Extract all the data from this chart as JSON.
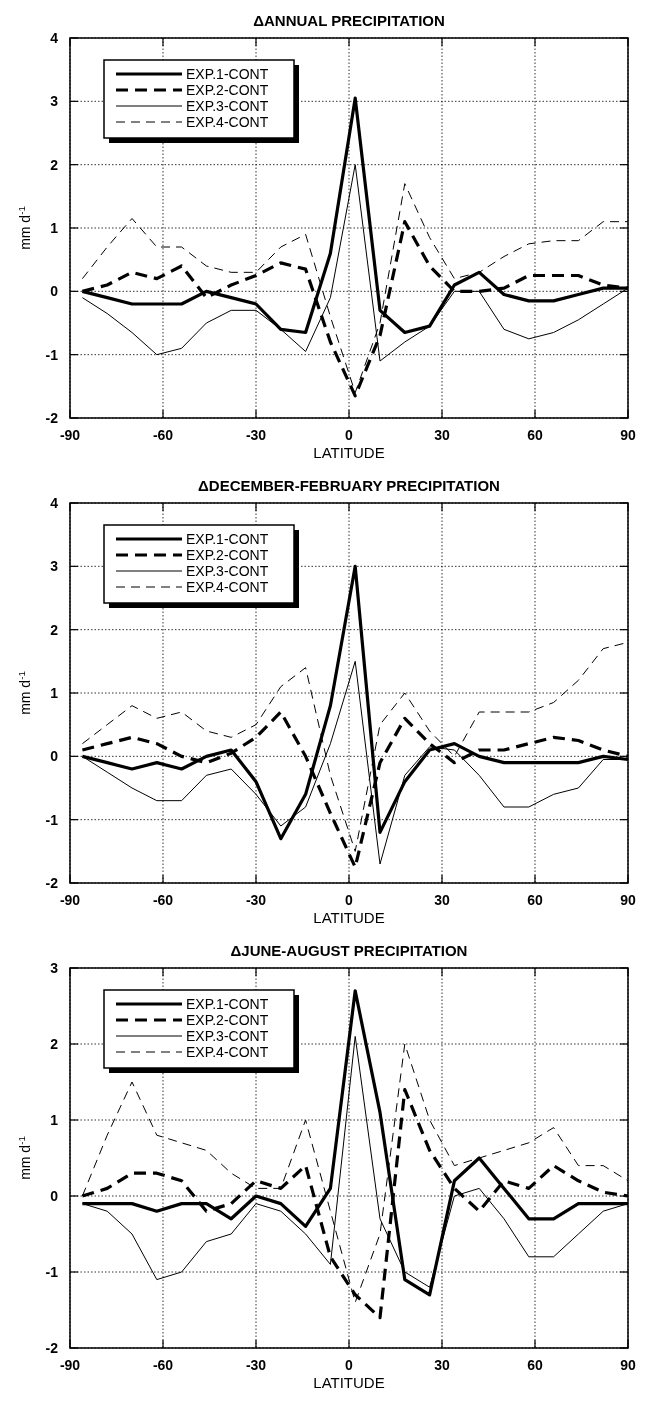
{
  "chart_data": [
    {
      "type": "line",
      "title": "ΔANNUAL  PRECIPITATION",
      "xlabel": "LATITUDE",
      "ylabel": "mm d$^{-1}$",
      "x": [
        -86,
        -78,
        -70,
        -62,
        -54,
        -46,
        -38,
        -30,
        -22,
        -14,
        -6,
        2,
        10,
        18,
        26,
        34,
        42,
        50,
        58,
        66,
        74,
        82,
        90
      ],
      "xlim": [
        -90,
        90
      ],
      "xticks": [
        -90,
        -60,
        -30,
        0,
        30,
        60,
        90
      ],
      "ylim": [
        -2,
        4
      ],
      "yticks": [
        -2,
        -1,
        0,
        1,
        2,
        3,
        4
      ],
      "grid": true,
      "legend": "top left",
      "marker": "none",
      "series": [
        {
          "name": "EXP.1-CONT",
          "color": "#000000",
          "line_style": "solid",
          "values": [
            0,
            -0.1,
            -0.2,
            -0.2,
            -0.2,
            0,
            -0.1,
            -0.2,
            -0.6,
            -0.65,
            0.6,
            3.05,
            -0.3,
            -0.65,
            -0.55,
            0.1,
            0.3,
            -0.05,
            -0.15,
            -0.15,
            -0.05,
            0.05,
            0.05
          ]
        },
        {
          "name": "EXP.2-CONT",
          "color": "#000000",
          "line_style": "dashed",
          "values": [
            0,
            0.1,
            0.3,
            0.2,
            0.4,
            -0.1,
            0.1,
            0.25,
            0.45,
            0.35,
            -0.8,
            -1.65,
            -0.7,
            1.1,
            0.4,
            0,
            0,
            0.05,
            0.25,
            0.25,
            0.25,
            0.1,
            0.05
          ]
        },
        {
          "name": "EXP.3-CONT",
          "color": "#000000",
          "line_style": "solid",
          "values": [
            -0.1,
            -0.35,
            -0.65,
            -1,
            -0.9,
            -0.5,
            -0.3,
            -0.3,
            -0.6,
            -0.95,
            -0.1,
            2,
            -1.1,
            -0.8,
            -0.55,
            0,
            0,
            -0.6,
            -0.75,
            -0.65,
            -0.45,
            -0.2,
            0.05
          ]
        },
        {
          "name": "EXP.4-CONT",
          "color": "#000000",
          "line_style": "dashed",
          "values": [
            0.2,
            0.7,
            1.15,
            0.7,
            0.7,
            0.4,
            0.3,
            0.3,
            0.7,
            0.9,
            -0.4,
            -1.6,
            -0.5,
            1.7,
            0.85,
            0.2,
            0.3,
            0.55,
            0.75,
            0.8,
            0.8,
            1.1,
            1.1
          ]
        }
      ]
    },
    {
      "type": "line",
      "title": "ΔDECEMBER-FEBRUARY PRECIPITATION",
      "xlabel": "LATITUDE",
      "ylabel": "mm d$^{-1}$",
      "x": [
        -86,
        -78,
        -70,
        -62,
        -54,
        -46,
        -38,
        -30,
        -22,
        -14,
        -6,
        2,
        10,
        18,
        26,
        34,
        42,
        50,
        58,
        66,
        74,
        82,
        90
      ],
      "xlim": [
        -90,
        90
      ],
      "xticks": [
        -90,
        -60,
        -30,
        0,
        30,
        60,
        90
      ],
      "ylim": [
        -2,
        4
      ],
      "yticks": [
        -2,
        -1,
        0,
        1,
        2,
        3,
        4
      ],
      "grid": true,
      "legend": "top left",
      "marker": "none",
      "series": [
        {
          "name": "EXP.1-CONT",
          "color": "#000000",
          "line_style": "solid",
          "values": [
            0,
            -0.1,
            -0.2,
            -0.1,
            -0.2,
            0,
            0.1,
            -0.4,
            -1.3,
            -0.6,
            0.8,
            3,
            -1.2,
            -0.4,
            0.1,
            0.2,
            0,
            -0.1,
            -0.1,
            -0.1,
            -0.1,
            0,
            -0.05
          ]
        },
        {
          "name": "EXP.2-CONT",
          "color": "#000000",
          "line_style": "dashed",
          "values": [
            0.1,
            0.2,
            0.3,
            0.2,
            0,
            -0.1,
            0.05,
            0.3,
            0.7,
            0,
            -0.9,
            -1.75,
            -0.1,
            0.6,
            0.2,
            -0.1,
            0.1,
            0.1,
            0.2,
            0.3,
            0.25,
            0.1,
            0
          ]
        },
        {
          "name": "EXP.3-CONT",
          "color": "#000000",
          "line_style": "solid",
          "values": [
            0,
            -0.25,
            -0.5,
            -0.7,
            -0.7,
            -0.3,
            -0.2,
            -0.6,
            -1.1,
            -0.8,
            0.2,
            1.5,
            -1.7,
            -0.3,
            0.15,
            0.1,
            -0.3,
            -0.8,
            -0.8,
            -0.6,
            -0.5,
            -0.05,
            -0.05
          ]
        },
        {
          "name": "EXP.4-CONT",
          "color": "#000000",
          "line_style": "dashed",
          "values": [
            0.2,
            0.5,
            0.8,
            0.6,
            0.7,
            0.4,
            0.3,
            0.5,
            1.1,
            1.4,
            -0.3,
            -1.5,
            0.5,
            1,
            0.4,
            0,
            0.7,
            0.7,
            0.7,
            0.85,
            1.2,
            1.7,
            1.8
          ]
        }
      ]
    },
    {
      "type": "line",
      "title": "ΔJUNE-AUGUST  PRECIPITATION",
      "xlabel": "LATITUDE",
      "ylabel": "mm d$^{-1}$",
      "x": [
        -86,
        -78,
        -70,
        -62,
        -54,
        -46,
        -38,
        -30,
        -22,
        -14,
        -6,
        2,
        10,
        18,
        26,
        34,
        42,
        50,
        58,
        66,
        74,
        82,
        90
      ],
      "xlim": [
        -90,
        90
      ],
      "xticks": [
        -90,
        -60,
        -30,
        0,
        30,
        60,
        90
      ],
      "ylim": [
        -2,
        3
      ],
      "yticks": [
        -2,
        -1,
        0,
        1,
        2,
        3
      ],
      "grid": true,
      "legend": "top left",
      "marker": "none",
      "series": [
        {
          "name": "EXP.1-CONT",
          "color": "#000000",
          "line_style": "solid",
          "values": [
            -0.1,
            -0.1,
            -0.1,
            -0.2,
            -0.1,
            -0.1,
            -0.3,
            0,
            -0.1,
            -0.4,
            0.1,
            2.7,
            1.1,
            -1.1,
            -1.3,
            0.2,
            0.5,
            0.1,
            -0.3,
            -0.3,
            -0.1,
            -0.1,
            -0.1
          ]
        },
        {
          "name": "EXP.2-CONT",
          "color": "#000000",
          "line_style": "dashed",
          "values": [
            0,
            0.1,
            0.3,
            0.3,
            0.2,
            -0.2,
            -0.1,
            0.2,
            0.1,
            0.4,
            -0.8,
            -1.3,
            -1.6,
            1.4,
            0.6,
            0.1,
            -0.2,
            0.2,
            0.1,
            0.4,
            0.2,
            0.05,
            0
          ]
        },
        {
          "name": "EXP.3-CONT",
          "color": "#000000",
          "line_style": "solid",
          "values": [
            -0.1,
            -0.2,
            -0.5,
            -1.1,
            -1,
            -0.6,
            -0.5,
            -0.1,
            -0.2,
            -0.5,
            -0.9,
            2.1,
            -0.3,
            -1,
            -1.2,
            0,
            0.1,
            -0.3,
            -0.8,
            -0.8,
            -0.5,
            -0.2,
            -0.1
          ]
        },
        {
          "name": "EXP.4-CONT",
          "color": "#000000",
          "line_style": "dashed",
          "values": [
            0,
            0.8,
            1.5,
            0.8,
            0.7,
            0.6,
            0.3,
            0.1,
            0.1,
            1,
            -0.2,
            -1.4,
            -0.5,
            2,
            1,
            0.4,
            0.5,
            0.6,
            0.7,
            0.9,
            0.4,
            0.4,
            0.2
          ]
        }
      ]
    }
  ]
}
